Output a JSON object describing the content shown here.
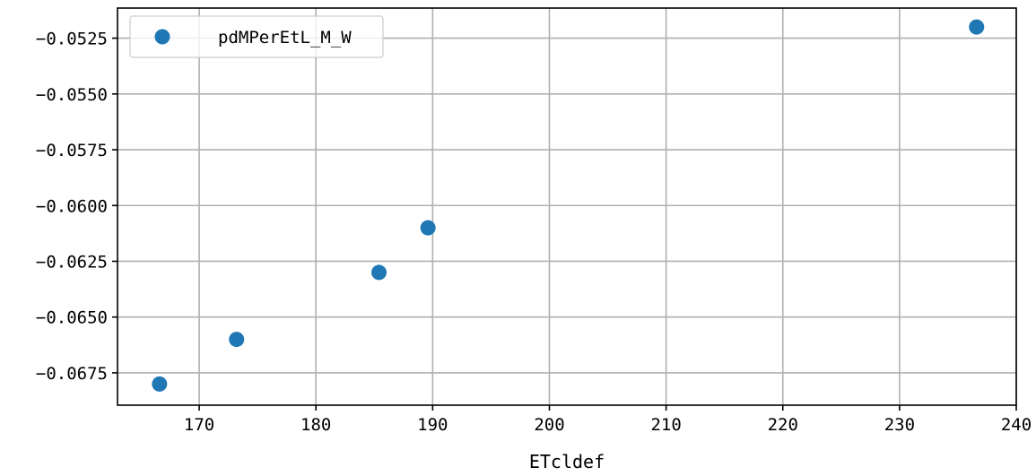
{
  "chart_data": {
    "type": "scatter",
    "title": "",
    "xlabel": "ETcldef",
    "ylabel": "",
    "xlim": [
      163,
      240
    ],
    "ylim": [
      -0.06895,
      -0.05115
    ],
    "x_ticks": [
      170,
      180,
      190,
      200,
      210,
      220,
      230,
      240
    ],
    "x_tick_labels": [
      "170",
      "180",
      "190",
      "200",
      "210",
      "220",
      "230",
      "240"
    ],
    "y_ticks": [
      -0.0525,
      -0.055,
      -0.0575,
      -0.06,
      -0.0625,
      -0.065,
      -0.0675
    ],
    "y_tick_labels": [
      "−0.0525",
      "−0.0550",
      "−0.0575",
      "−0.0600",
      "−0.0625",
      "−0.0650",
      "−0.0675"
    ],
    "grid": true,
    "legend_position": "top-left",
    "series": [
      {
        "name": "pdMPerEtL_M_W",
        "color": "#1f77b4",
        "marker": "circle",
        "x": [
          166.6,
          173.2,
          185.4,
          189.6,
          236.6
        ],
        "y": [
          -0.068,
          -0.066,
          -0.063,
          -0.061,
          -0.052
        ]
      }
    ]
  }
}
